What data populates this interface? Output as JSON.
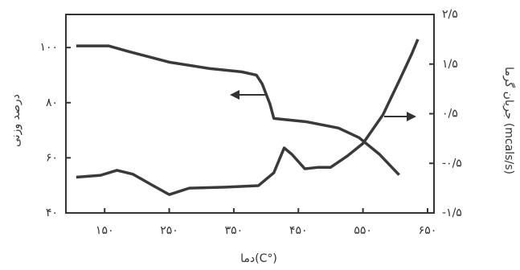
{
  "chart_data": {
    "type": "line",
    "xlabel": "دما(C°)",
    "ylabel": "درصد وزنی",
    "y2label": "جریان گرما (mcals/s)",
    "xlim": [
      90,
      660
    ],
    "ylim": [
      40,
      112
    ],
    "y2lim": [
      -1.5,
      2.5
    ],
    "xticks": [
      {
        "value": 150,
        "label": "۱۵۰"
      },
      {
        "value": 250,
        "label": "۲۵۰"
      },
      {
        "value": 350,
        "label": "۳۵۰"
      },
      {
        "value": 450,
        "label": "۴۵۰"
      },
      {
        "value": 550,
        "label": "۵۵۰"
      },
      {
        "value": 650,
        "label": "۶۵۰"
      }
    ],
    "yticks": [
      {
        "value": 40,
        "label": "۴۰"
      },
      {
        "value": 60,
        "label": "۶۰"
      },
      {
        "value": 80,
        "label": "۸۰"
      },
      {
        "value": 100,
        "label": "۱۰۰"
      }
    ],
    "y2ticks": [
      {
        "value": -1.5,
        "label": "-۱/۵"
      },
      {
        "value": -0.5,
        "label": "-۰/۵"
      },
      {
        "value": 0.5,
        "label": "۰/۵"
      },
      {
        "value": 1.5,
        "label": "۱/۵"
      },
      {
        "value": 2.5,
        "label": "۲/۵"
      }
    ],
    "series": [
      {
        "color": "#3a3a3a",
        "x": [
          106,
          156,
          188,
          250,
          312,
          362,
          385,
          394,
          406,
          412,
          462,
          512,
          544,
          575,
          606
        ],
        "values": [
          100.6,
          100.6,
          98.5,
          94.7,
          92.4,
          91.2,
          90,
          86.8,
          79.5,
          74.3,
          73.1,
          70.8,
          67.3,
          61.4,
          53.8
        ]
      },
      {
        "color": "#3a3a3a",
        "axis": "y2",
        "x": [
          106,
          144,
          169,
          194,
          225,
          250,
          281,
          338,
          388,
          412,
          428,
          440,
          460,
          481,
          500,
          525,
          550,
          581,
          606,
          625,
          635
        ],
        "values": [
          -0.78,
          -0.74,
          -0.64,
          -0.72,
          -0.95,
          -1.13,
          -1.0,
          -0.98,
          -0.95,
          -0.69,
          -0.19,
          -0.32,
          -0.61,
          -0.58,
          -0.58,
          -0.36,
          -0.1,
          0.48,
          1.16,
          1.69,
          2.0
        ]
      }
    ]
  }
}
